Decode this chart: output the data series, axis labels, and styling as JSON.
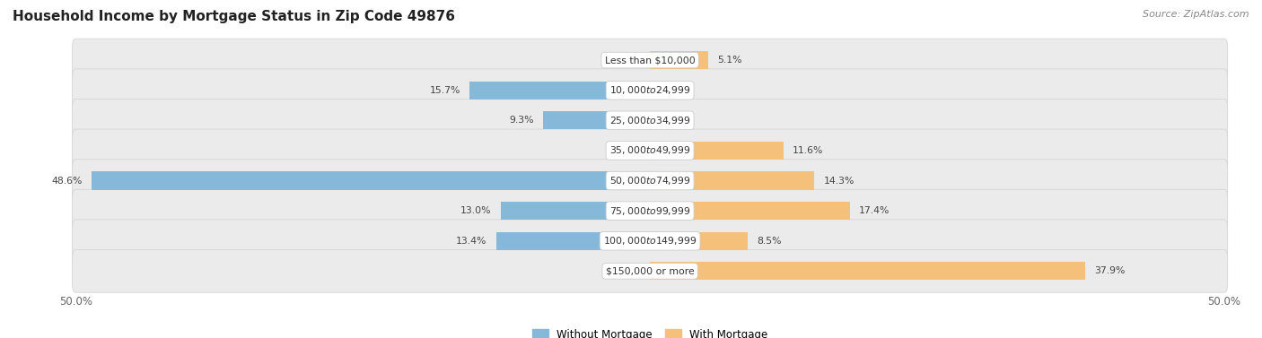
{
  "title": "Household Income by Mortgage Status in Zip Code 49876",
  "source": "Source: ZipAtlas.com",
  "categories": [
    "Less than $10,000",
    "$10,000 to $24,999",
    "$25,000 to $34,999",
    "$35,000 to $49,999",
    "$50,000 to $74,999",
    "$75,000 to $99,999",
    "$100,000 to $149,999",
    "$150,000 or more"
  ],
  "without_mortgage": [
    0.0,
    15.7,
    9.3,
    0.0,
    48.6,
    13.0,
    13.4,
    0.0
  ],
  "with_mortgage": [
    5.1,
    0.0,
    0.0,
    11.6,
    14.3,
    17.4,
    8.5,
    37.9
  ],
  "color_without": "#85b8d9",
  "color_with": "#f5c07a",
  "xlim": 50.0,
  "background_color": "#ffffff",
  "row_color": "#ebebeb",
  "row_edge_color": "#d5d5d5",
  "title_fontsize": 11,
  "label_fontsize": 7.8,
  "tick_fontsize": 8.5,
  "source_fontsize": 8,
  "legend_fontsize": 8.5
}
